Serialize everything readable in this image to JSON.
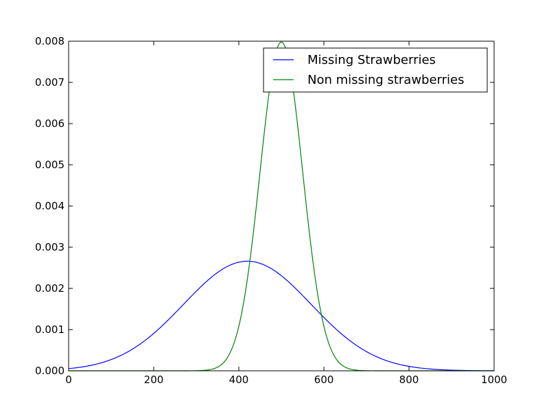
{
  "chart_data": {
    "type": "line",
    "xlim": [
      0,
      1000
    ],
    "ylim": [
      0,
      0.008
    ],
    "x_ticks": [
      "0",
      "200",
      "400",
      "600",
      "800",
      "1000"
    ],
    "y_ticks": [
      "0.000",
      "0.001",
      "0.002",
      "0.003",
      "0.004",
      "0.005",
      "0.006",
      "0.007",
      "0.008"
    ],
    "grid": false,
    "legend_position": "top-right",
    "series": [
      {
        "name": "Missing Strawberries",
        "color": "#0000ff",
        "distribution": "normal",
        "mean": 420,
        "std": 150,
        "peak": 0.00266
      },
      {
        "name": "Non missing strawberries",
        "color": "#008000",
        "distribution": "normal",
        "mean": 500,
        "std": 50,
        "peak": 0.00798
      }
    ]
  }
}
